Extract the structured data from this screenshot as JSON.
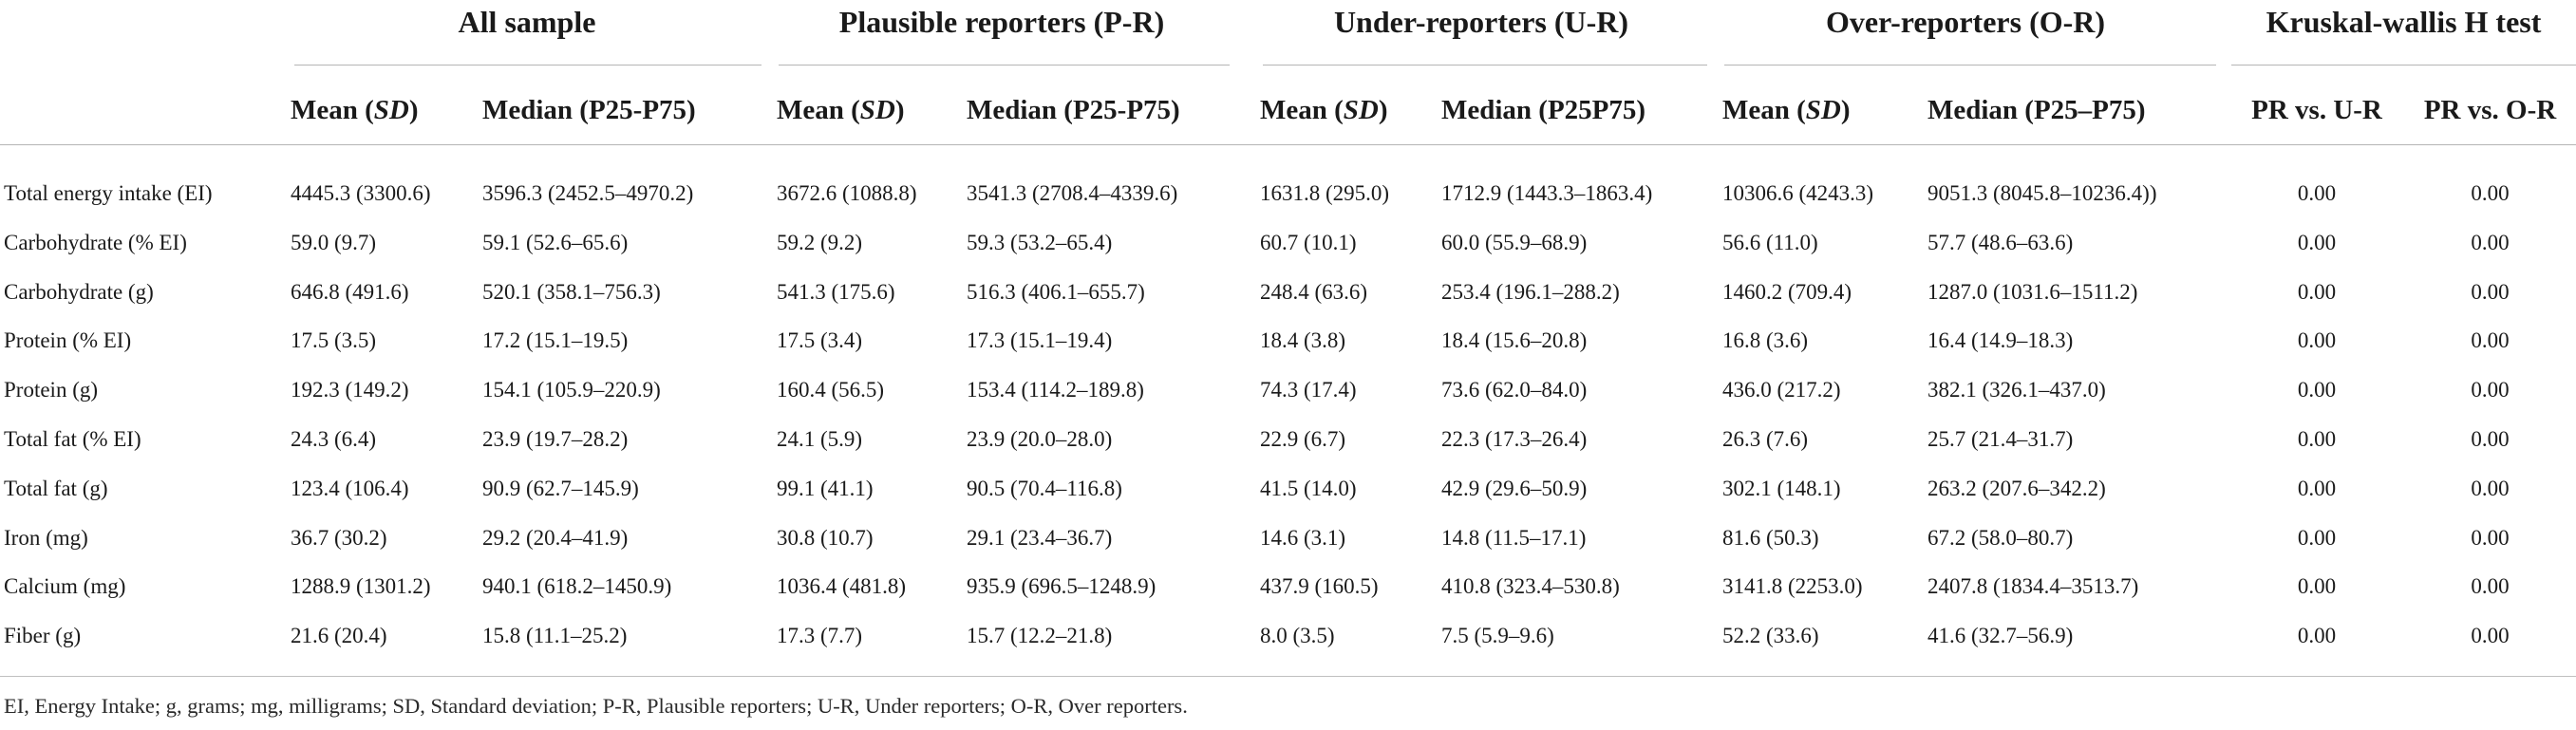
{
  "table": {
    "groups": [
      {
        "label": "All sample"
      },
      {
        "label": "Plausible reporters (P-R)"
      },
      {
        "label": "Under-reporters (U-R)"
      },
      {
        "label": "Over-reporters (O-R)"
      },
      {
        "label": "Kruskal-wallis H test"
      }
    ],
    "subheaders": [
      {
        "prefix": "Mean (",
        "italic": "SD",
        "suffix": ")"
      },
      {
        "text": "Median (P25-P75)"
      },
      {
        "prefix": "Mean (",
        "italic": "SD",
        "suffix": ")"
      },
      {
        "text": "Median (P25-P75)"
      },
      {
        "prefix": "Mean (",
        "italic": "SD",
        "suffix": ")"
      },
      {
        "text": "Median (P25P75)"
      },
      {
        "prefix": "Mean (",
        "italic": "SD",
        "suffix": ")"
      },
      {
        "text": "Median (P25–P75)"
      },
      {
        "text": "PR vs. U-R"
      },
      {
        "text": "PR vs. O-R"
      }
    ],
    "rows": [
      {
        "label": "Total energy intake (EI)",
        "cells": [
          "4445.3 (3300.6)",
          "3596.3 (2452.5–4970.2)",
          "3672.6 (1088.8)",
          "3541.3 (2708.4–4339.6)",
          "1631.8 (295.0)",
          "1712.9 (1443.3–1863.4)",
          "10306.6 (4243.3)",
          "9051.3 (8045.8–10236.4))",
          "0.00",
          "0.00"
        ]
      },
      {
        "label": "Carbohydrate (% EI)",
        "cells": [
          "59.0 (9.7)",
          "59.1 (52.6–65.6)",
          "59.2 (9.2)",
          "59.3 (53.2–65.4)",
          "60.7 (10.1)",
          "60.0 (55.9–68.9)",
          "56.6 (11.0)",
          "57.7 (48.6–63.6)",
          "0.00",
          "0.00"
        ]
      },
      {
        "label": "Carbohydrate (g)",
        "cells": [
          "646.8 (491.6)",
          "520.1 (358.1–756.3)",
          "541.3 (175.6)",
          "516.3 (406.1–655.7)",
          "248.4 (63.6)",
          "253.4 (196.1–288.2)",
          "1460.2 (709.4)",
          "1287.0 (1031.6–1511.2)",
          "0.00",
          "0.00"
        ]
      },
      {
        "label": "Protein (% EI)",
        "cells": [
          "17.5 (3.5)",
          "17.2 (15.1–19.5)",
          "17.5 (3.4)",
          "17.3 (15.1–19.4)",
          "18.4 (3.8)",
          "18.4 (15.6–20.8)",
          "16.8 (3.6)",
          "16.4 (14.9–18.3)",
          "0.00",
          "0.00"
        ]
      },
      {
        "label": "Protein (g)",
        "cells": [
          "192.3 (149.2)",
          "154.1 (105.9–220.9)",
          "160.4 (56.5)",
          "153.4 (114.2–189.8)",
          "74.3 (17.4)",
          "73.6 (62.0–84.0)",
          "436.0 (217.2)",
          "382.1 (326.1–437.0)",
          "0.00",
          "0.00"
        ]
      },
      {
        "label": "Total fat (% EI)",
        "cells": [
          "24.3 (6.4)",
          "23.9 (19.7–28.2)",
          "24.1 (5.9)",
          "23.9 (20.0–28.0)",
          "22.9 (6.7)",
          "22.3 (17.3–26.4)",
          "26.3 (7.6)",
          "25.7 (21.4–31.7)",
          "0.00",
          "0.00"
        ]
      },
      {
        "label": "Total fat (g)",
        "cells": [
          "123.4 (106.4)",
          "90.9 (62.7–145.9)",
          "99.1 (41.1)",
          "90.5 (70.4–116.8)",
          "41.5 (14.0)",
          "42.9 (29.6–50.9)",
          "302.1 (148.1)",
          "263.2 (207.6–342.2)",
          "0.00",
          "0.00"
        ]
      },
      {
        "label": "Iron (mg)",
        "cells": [
          "36.7 (30.2)",
          "29.2 (20.4–41.9)",
          "30.8 (10.7)",
          "29.1 (23.4–36.7)",
          "14.6 (3.1)",
          "14.8 (11.5–17.1)",
          "81.6 (50.3)",
          "67.2 (58.0–80.7)",
          "0.00",
          "0.00"
        ]
      },
      {
        "label": "Calcium (mg)",
        "cells": [
          "1288.9 (1301.2)",
          "940.1 (618.2–1450.9)",
          "1036.4 (481.8)",
          "935.9 (696.5–1248.9)",
          "437.9 (160.5)",
          "410.8 (323.4–530.8)",
          "3141.8 (2253.0)",
          "2407.8 (1834.4–3513.7)",
          "0.00",
          "0.00"
        ]
      },
      {
        "label": "Fiber (g)",
        "cells": [
          "21.6 (20.4)",
          "15.8 (11.1–25.2)",
          "17.3 (7.7)",
          "15.7 (12.2–21.8)",
          "8.0 (3.5)",
          "7.5 (5.9–9.6)",
          "52.2 (33.6)",
          "41.6 (32.7–56.9)",
          "0.00",
          "0.00"
        ]
      }
    ],
    "footnote": "EI, Energy Intake; g, grams; mg, milligrams; SD, Standard deviation; P-R, Plausible reporters; U-R, Under reporters; O-R, Over reporters."
  }
}
